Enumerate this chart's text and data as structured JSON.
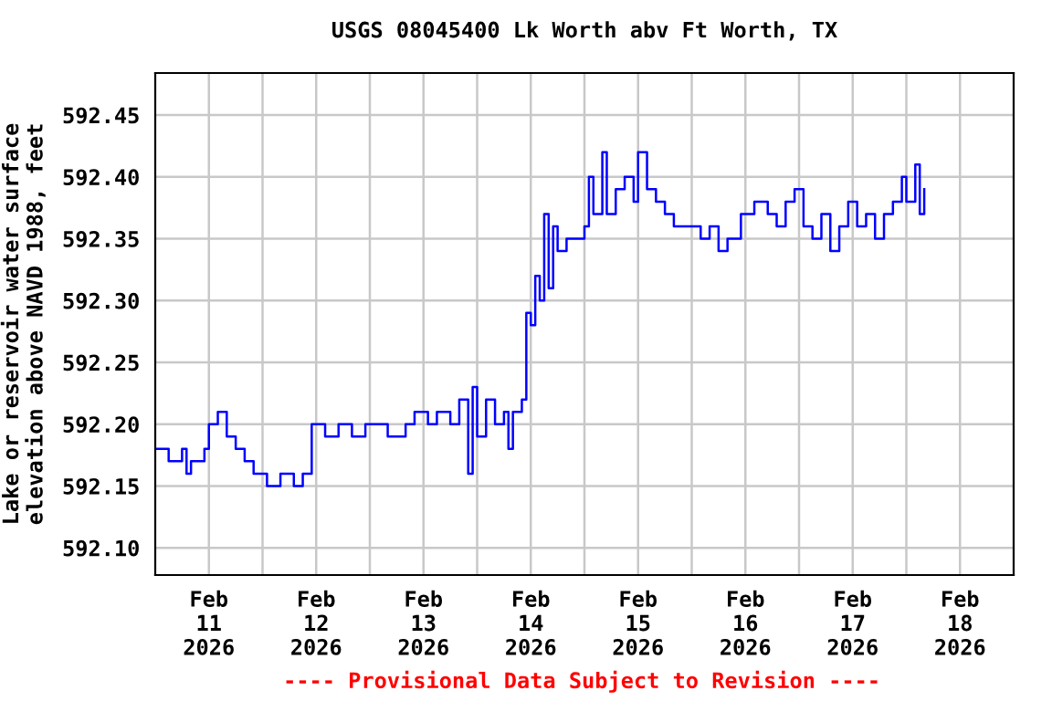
{
  "chart_data": {
    "type": "step",
    "title": "USGS 08045400 Lk Worth abv Ft Worth, TX",
    "ylabel": "Lake or reservoir water surface\nelevation above NAVD 1988, feet",
    "annotations": [
      "---- Provisional Data Subject to Revision ----"
    ],
    "x": [
      "2026-02-11T00:00",
      "2026-02-11T03:00",
      "2026-02-11T06:00",
      "2026-02-11T07:00",
      "2026-02-11T08:00",
      "2026-02-11T11:00",
      "2026-02-11T12:00",
      "2026-02-11T14:00",
      "2026-02-11T16:00",
      "2026-02-11T18:00",
      "2026-02-11T20:00",
      "2026-02-11T22:00",
      "2026-02-12T01:00",
      "2026-02-12T04:00",
      "2026-02-12T07:00",
      "2026-02-12T09:00",
      "2026-02-12T11:00",
      "2026-02-12T14:00",
      "2026-02-12T17:00",
      "2026-02-12T20:00",
      "2026-02-12T23:00",
      "2026-02-13T04:00",
      "2026-02-13T08:00",
      "2026-02-13T10:00",
      "2026-02-13T13:00",
      "2026-02-13T15:00",
      "2026-02-13T18:00",
      "2026-02-13T20:00",
      "2026-02-13T22:00",
      "2026-02-13T23:00",
      "2026-02-14T00:00",
      "2026-02-14T02:00",
      "2026-02-14T04:00",
      "2026-02-14T06:00",
      "2026-02-14T07:00",
      "2026-02-14T08:00",
      "2026-02-14T10:00",
      "2026-02-14T11:00",
      "2026-02-14T12:00",
      "2026-02-14T13:00",
      "2026-02-14T14:00",
      "2026-02-14T15:00",
      "2026-02-14T16:00",
      "2026-02-14T17:00",
      "2026-02-14T18:00",
      "2026-02-14T20:00",
      "2026-02-14T23:00",
      "2026-02-15T00:00",
      "2026-02-15T01:00",
      "2026-02-15T02:00",
      "2026-02-15T04:00",
      "2026-02-15T05:00",
      "2026-02-15T07:00",
      "2026-02-15T09:00",
      "2026-02-15T11:00",
      "2026-02-15T12:00",
      "2026-02-15T14:00",
      "2026-02-15T16:00",
      "2026-02-15T18:00",
      "2026-02-15T20:00",
      "2026-02-15T23:00",
      "2026-02-16T02:00",
      "2026-02-16T04:00",
      "2026-02-16T06:00",
      "2026-02-16T08:00",
      "2026-02-16T11:00",
      "2026-02-16T14:00",
      "2026-02-16T17:00",
      "2026-02-16T19:00",
      "2026-02-16T21:00",
      "2026-02-16T23:00",
      "2026-02-17T01:00",
      "2026-02-17T03:00",
      "2026-02-17T05:00",
      "2026-02-17T07:00",
      "2026-02-17T09:00",
      "2026-02-17T11:00",
      "2026-02-17T13:00",
      "2026-02-17T15:00",
      "2026-02-17T17:00",
      "2026-02-17T19:00",
      "2026-02-17T21:00",
      "2026-02-17T23:00",
      "2026-02-18T00:00",
      "2026-02-18T02:00",
      "2026-02-18T03:00",
      "2026-02-18T04:00"
    ],
    "series": [
      {
        "color": "#0000ff",
        "values": [
          592.18,
          592.17,
          592.18,
          592.16,
          592.17,
          592.18,
          592.2,
          592.21,
          592.19,
          592.18,
          592.17,
          592.16,
          592.15,
          592.16,
          592.15,
          592.16,
          592.2,
          592.19,
          592.2,
          592.19,
          592.2,
          592.19,
          592.2,
          592.21,
          592.2,
          592.21,
          592.2,
          592.22,
          592.16,
          592.23,
          592.19,
          592.22,
          592.2,
          592.21,
          592.18,
          592.21,
          592.22,
          592.29,
          592.28,
          592.32,
          592.3,
          592.37,
          592.31,
          592.36,
          592.34,
          592.35,
          592.35,
          592.36,
          592.4,
          592.37,
          592.42,
          592.37,
          592.39,
          592.4,
          592.38,
          592.42,
          592.39,
          592.38,
          592.37,
          592.36,
          592.36,
          592.35,
          592.36,
          592.34,
          592.35,
          592.37,
          592.38,
          592.37,
          592.36,
          592.38,
          592.39,
          592.36,
          592.35,
          592.37,
          592.34,
          592.36,
          592.38,
          592.36,
          592.37,
          592.35,
          592.37,
          592.38,
          592.4,
          592.38,
          592.41,
          592.37,
          592.39
        ]
      }
    ],
    "xlim": [
      "2026-02-11T00:00",
      "2026-02-19T00:00"
    ],
    "xticks": [
      {
        "value": "2026-02-11T12:00",
        "label": "Feb\n11\n2026"
      },
      {
        "value": "2026-02-12T00:00",
        "label": null
      },
      {
        "value": "2026-02-12T12:00",
        "label": "Feb\n12\n2026"
      },
      {
        "value": "2026-02-13T00:00",
        "label": null
      },
      {
        "value": "2026-02-13T12:00",
        "label": "Feb\n13\n2026"
      },
      {
        "value": "2026-02-14T00:00",
        "label": null
      },
      {
        "value": "2026-02-14T12:00",
        "label": "Feb\n14\n2026"
      },
      {
        "value": "2026-02-15T00:00",
        "label": null
      },
      {
        "value": "2026-02-15T12:00",
        "label": "Feb\n15\n2026"
      },
      {
        "value": "2026-02-16T00:00",
        "label": null
      },
      {
        "value": "2026-02-16T12:00",
        "label": "Feb\n16\n2026"
      },
      {
        "value": "2026-02-17T00:00",
        "label": null
      },
      {
        "value": "2026-02-17T12:00",
        "label": "Feb\n17\n2026"
      },
      {
        "value": "2026-02-18T00:00",
        "label": null
      },
      {
        "value": "2026-02-18T12:00",
        "label": "Feb\n18\n2026"
      }
    ],
    "ylim": [
      592.078,
      592.484
    ],
    "yticks": [
      {
        "value": 592.1,
        "label": "592.10"
      },
      {
        "value": 592.15,
        "label": "592.15"
      },
      {
        "value": 592.2,
        "label": "592.20"
      },
      {
        "value": 592.25,
        "label": "592.25"
      },
      {
        "value": 592.3,
        "label": "592.30"
      },
      {
        "value": 592.35,
        "label": "592.35"
      },
      {
        "value": 592.4,
        "label": "592.40"
      },
      {
        "value": 592.45,
        "label": "592.45"
      }
    ],
    "grid": true
  }
}
